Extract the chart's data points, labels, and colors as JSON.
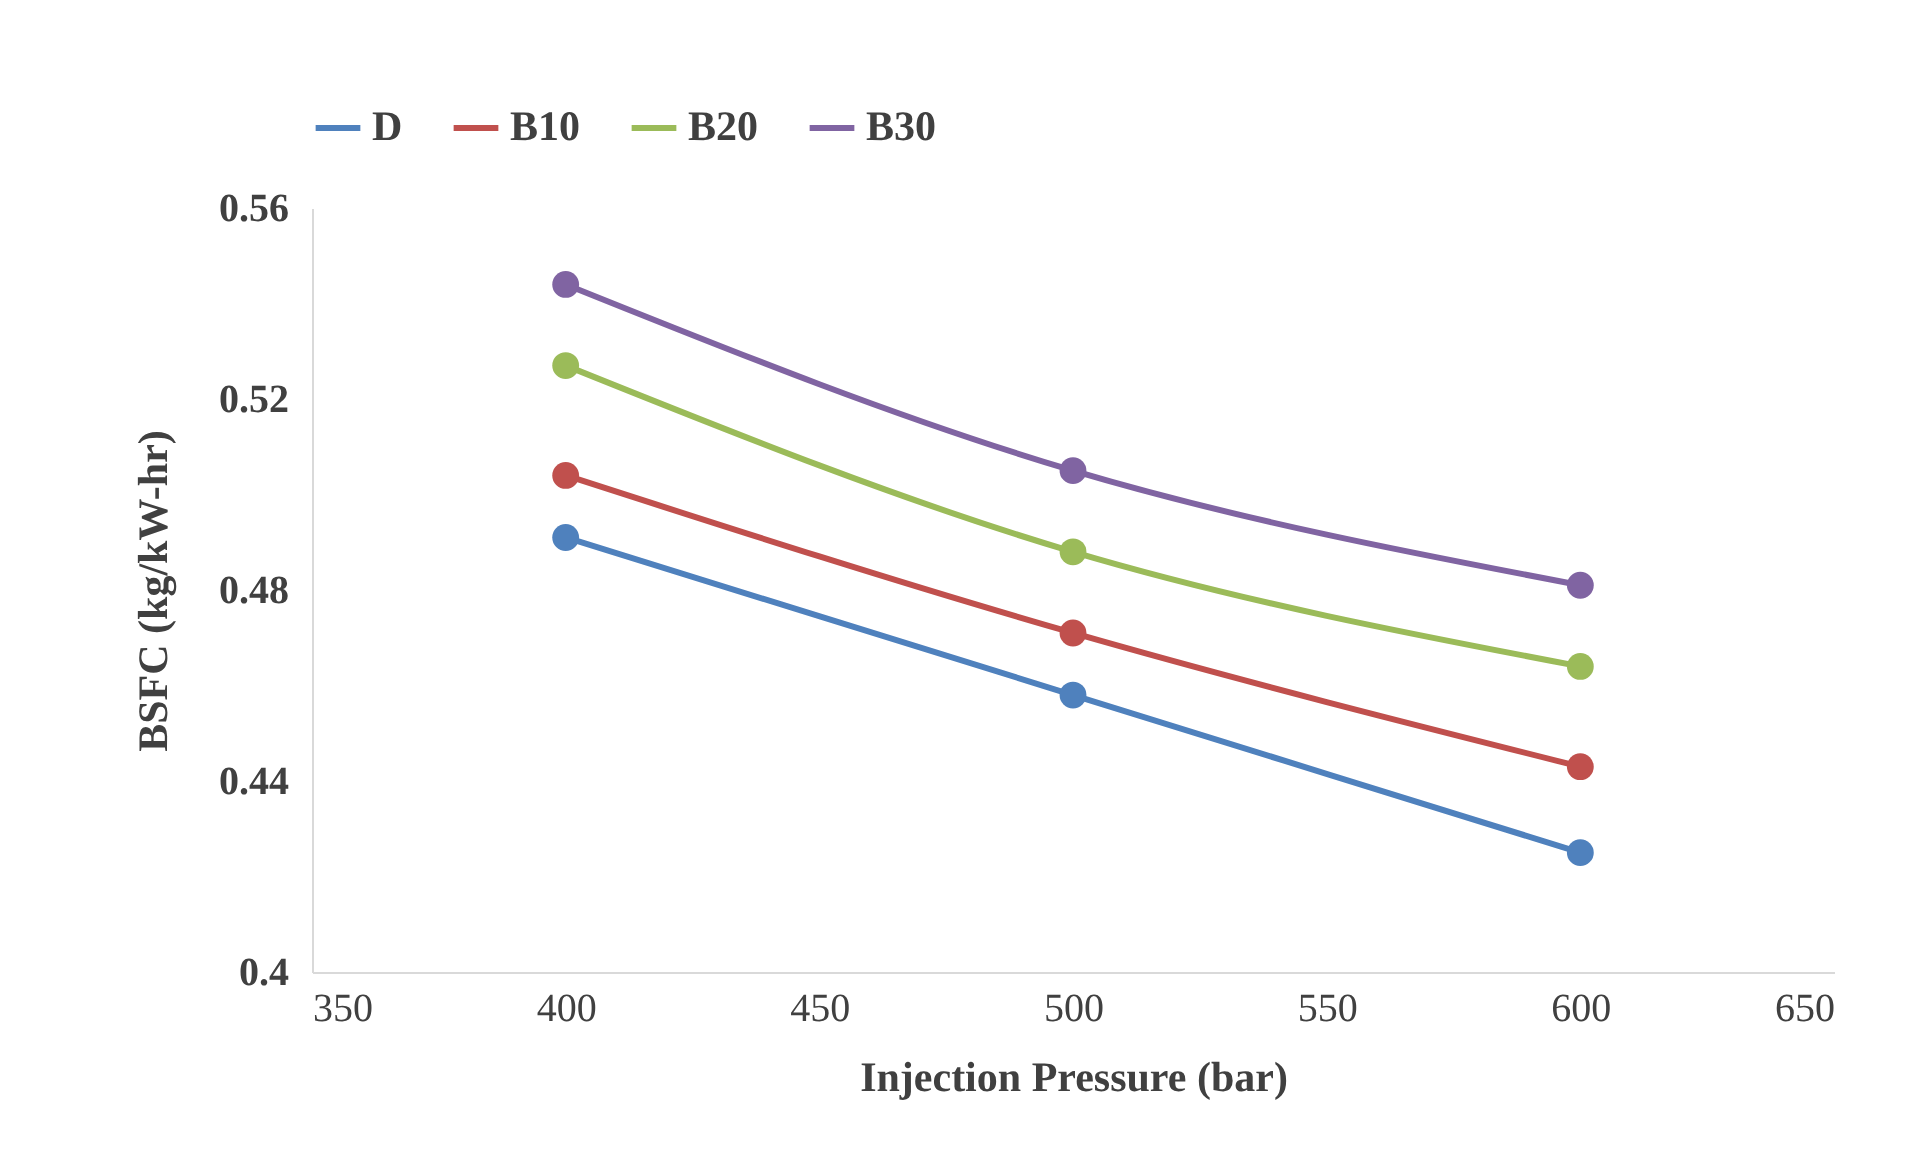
{
  "chart_data": {
    "type": "line",
    "xlabel": "Injection Pressure (bar)",
    "ylabel": "BSFC (kg/kW-hr)",
    "x": [
      400,
      500,
      600
    ],
    "series": [
      {
        "name": "D",
        "color": "#4f81bd",
        "values": [
          0.491,
          0.458,
          0.425
        ]
      },
      {
        "name": "B10",
        "color": "#c0504d",
        "values": [
          0.504,
          0.471,
          0.443
        ]
      },
      {
        "name": "B20",
        "color": "#9bbb59",
        "values": [
          0.527,
          0.488,
          0.464
        ]
      },
      {
        "name": "B30",
        "color": "#8064a2",
        "values": [
          0.544,
          0.505,
          0.481
        ]
      }
    ],
    "xlim": [
      350,
      650
    ],
    "xticks": [
      350,
      400,
      450,
      500,
      550,
      600,
      650
    ],
    "ylim": [
      0.4,
      0.56
    ],
    "yticks": [
      {
        "value": 0.4,
        "label": "0.4"
      },
      {
        "value": 0.44,
        "label": "0.44"
      },
      {
        "value": 0.48,
        "label": "0.48"
      },
      {
        "value": 0.52,
        "label": "0.52"
      },
      {
        "value": 0.56,
        "label": "0.56"
      }
    ],
    "grid": false,
    "legend": "top",
    "marker": "circle",
    "line_style": "solid"
  }
}
